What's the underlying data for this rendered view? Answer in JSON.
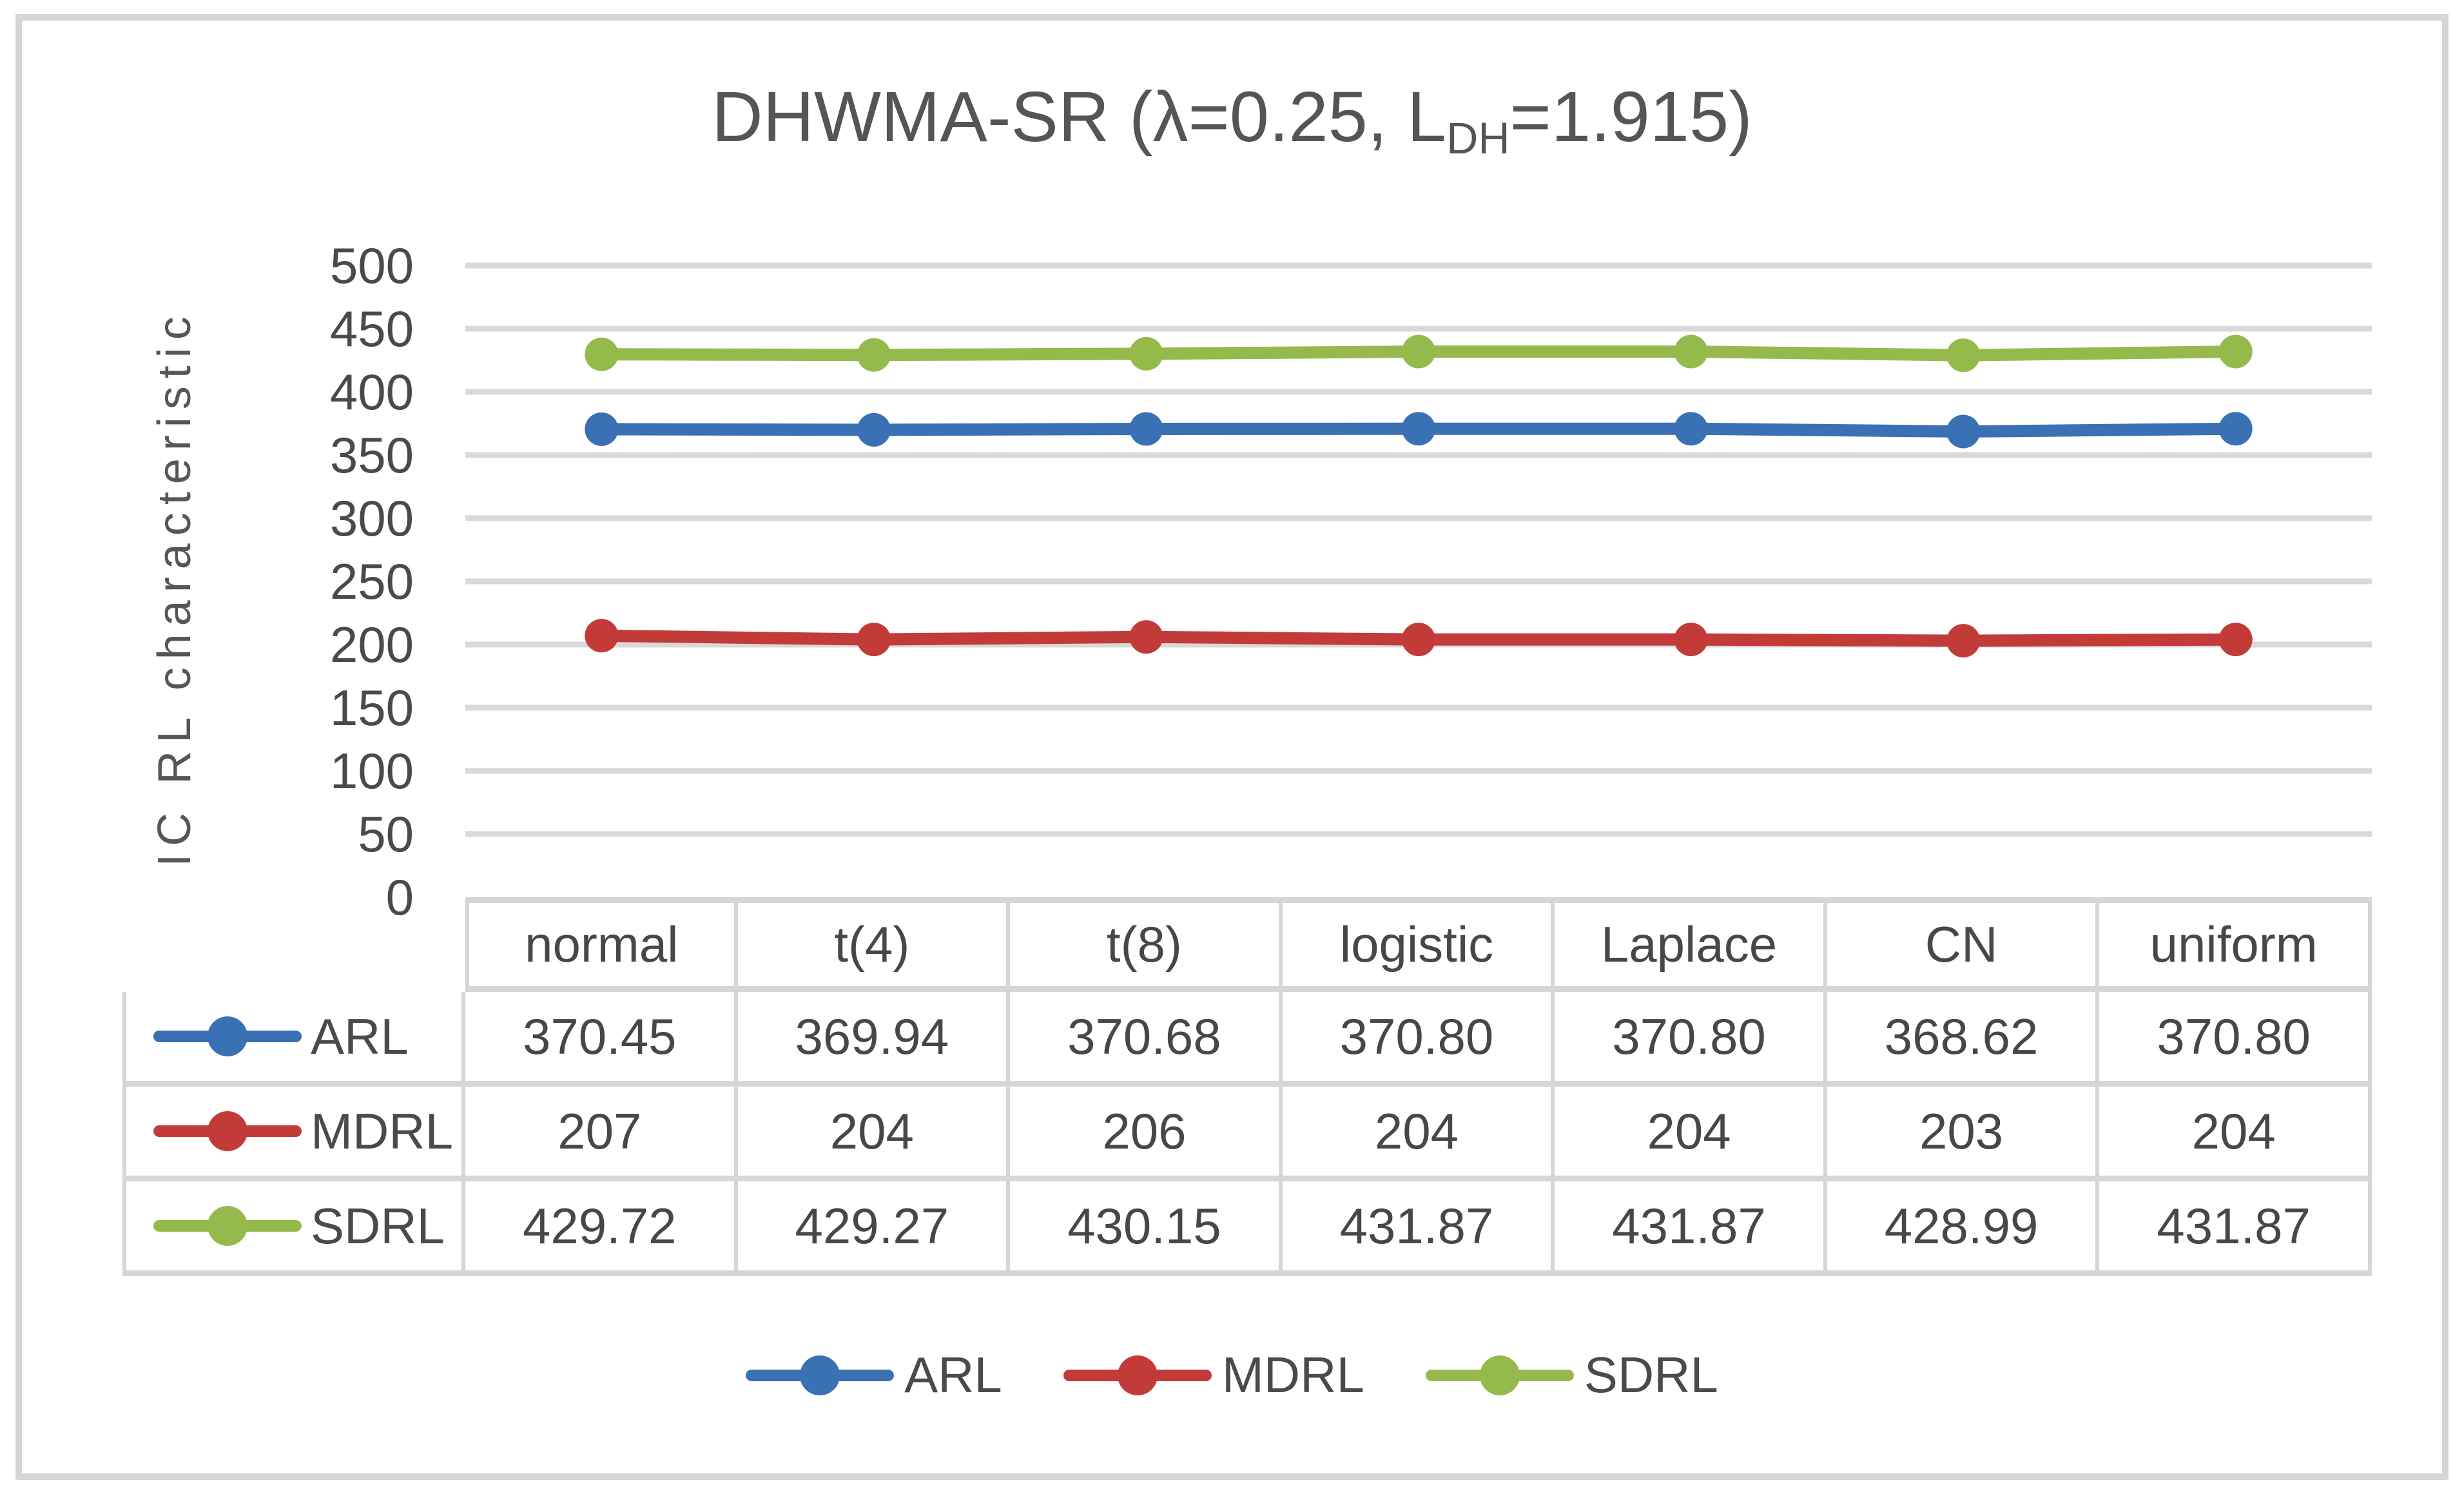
{
  "chart": {
    "title_prefix": "DHWMA-SR (λ=0.25, L",
    "title_sub": "DH",
    "title_suffix": "=1.915)",
    "y_axis_title": "IC RL characteristic"
  },
  "chart_data": {
    "type": "line",
    "title": "DHWMA-SR (λ=0.25, L_DH=1.915)",
    "xlabel": "",
    "ylabel": "IC RL characteristic",
    "categories": [
      "normal",
      "t(4)",
      "t(8)",
      "logistic",
      "Laplace",
      "CN",
      "uniform"
    ],
    "series": [
      {
        "name": "ARL",
        "color": "#3A70B4",
        "values": [
          370.45,
          369.94,
          370.68,
          370.8,
          370.8,
          368.62,
          370.8
        ],
        "display": [
          "370.45",
          "369.94",
          "370.68",
          "370.80",
          "370.80",
          "368.62",
          "370.80"
        ]
      },
      {
        "name": "MDRL",
        "color": "#C23B38",
        "values": [
          207,
          204,
          206,
          204,
          204,
          203,
          204
        ],
        "display": [
          "207",
          "204",
          "206",
          "204",
          "204",
          "203",
          "204"
        ]
      },
      {
        "name": "SDRL",
        "color": "#94BA4B",
        "values": [
          429.72,
          429.27,
          430.15,
          431.87,
          431.87,
          428.99,
          431.87
        ],
        "display": [
          "429.72",
          "429.27",
          "430.15",
          "431.87",
          "431.87",
          "428.99",
          "431.87"
        ]
      }
    ],
    "ylim": [
      0,
      500
    ],
    "ytick_step": 50,
    "yticks": [
      "0",
      "50",
      "100",
      "150",
      "200",
      "250",
      "300",
      "350",
      "400",
      "450",
      "500"
    ],
    "grid": true,
    "legend_position": "bottom",
    "gridline_color": "#D9D9D9",
    "border_color": "#D6D6D6",
    "text_color": "#4A4A4A",
    "marker_style": "circle",
    "data_table_shown": true
  }
}
